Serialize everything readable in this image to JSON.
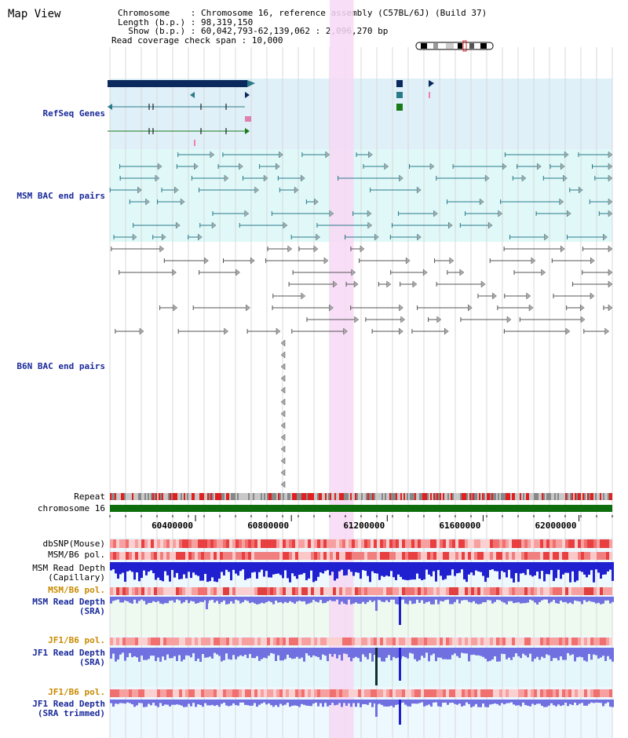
{
  "view_title": "Map View",
  "info": {
    "chromosome": "Chromosome    : Chromosome 16, reference assembly (C57BL/6J) (Build 37)",
    "length": "Length (b.p.) : 98,319,150",
    "show": "  Show (b.p.) : 60,042,793-62,139,062 : 2,096,270 bp",
    "span": "Read coverage check span : 10,000"
  },
  "tracks": {
    "refseq": "RefSeq Genes",
    "msm_bac": "MSM BAC end pairs",
    "b6n_bac": "B6N BAC end pairs",
    "repeat": "Repeat",
    "chrom": "chromosome 16",
    "dbsnp": "dbSNP(Mouse)",
    "msm_b6_pol_1": "MSM/B6 pol.",
    "msm_depth_cap_1": "MSM Read Depth",
    "msm_depth_cap_2": "(Capillary)",
    "msm_b6_pol_2": "MSM/B6 pol.",
    "msm_depth_sra_1": "MSM Read Depth",
    "msm_depth_sra_2": "(SRA)",
    "jf1_b6_pol_1": "JF1/B6 pol.",
    "jf1_depth_sra_1": "JF1 Read Depth",
    "jf1_depth_sra_2": "(SRA)",
    "jf1_b6_pol_2": "JF1/B6 pol.",
    "jf1_depth_trim_1": "JF1 Read Depth",
    "jf1_depth_trim_2": "(SRA trimmed)"
  },
  "axis": {
    "start": 60042793,
    "end": 62139062,
    "ticks": [
      "60400000",
      "60800000",
      "61200000",
      "61600000",
      "62000000"
    ],
    "highlight_start": 60960000,
    "highlight_end": 61060000
  },
  "colors": {
    "refseq_bg": "#dff0f8",
    "msm_bg": "#e0f8f8",
    "b6n_bg": "#ffffff",
    "highlight": "#f7d8f4",
    "gene_dark": "#0a2a5e",
    "gene_teal": "#2a7a8a",
    "gene_green": "#1a7a1a",
    "chrom_green": "#0e6e0e",
    "depth_blue": "#2020d0",
    "depth_light": "#7070e0",
    "grid": "#d8d8d8"
  }
}
